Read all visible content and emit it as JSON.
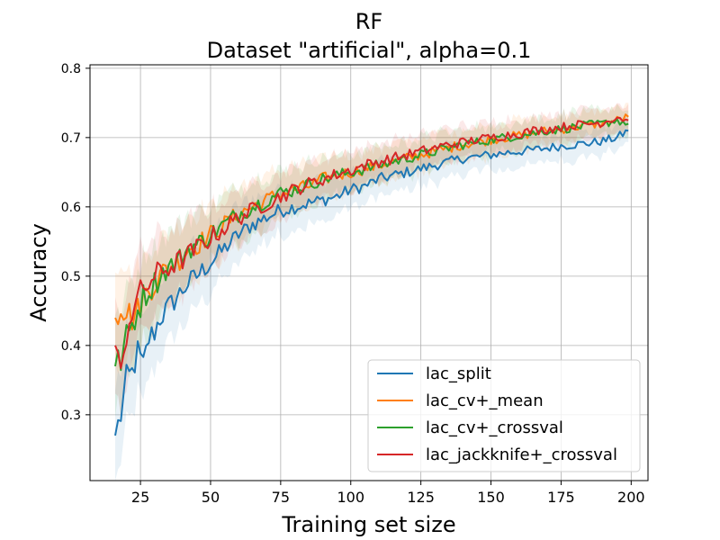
{
  "chart_data": {
    "type": "line",
    "title": "RF",
    "subtitle": "Dataset \"artificial\", alpha=0.1",
    "xlabel": "Training set size",
    "ylabel": "Accuracy",
    "xlim": [
      7,
      206
    ],
    "ylim": [
      0.205,
      0.805
    ],
    "x_ticks": [
      25,
      50,
      75,
      100,
      125,
      150,
      175,
      200
    ],
    "y_ticks": [
      0.3,
      0.4,
      0.5,
      0.6,
      0.7,
      0.8
    ],
    "x_tick_labels": [
      "25",
      "50",
      "75",
      "100",
      "125",
      "150",
      "175",
      "200"
    ],
    "y_tick_labels": [
      "0.3",
      "0.4",
      "0.5",
      "0.6",
      "0.7",
      "0.8"
    ],
    "grid": true,
    "legend_position": "lower-right",
    "series": [
      {
        "name": "lac_split",
        "color": "#1f77b4",
        "points": [
          [
            16,
            0.27
          ],
          [
            18,
            0.3
          ],
          [
            20,
            0.35
          ],
          [
            22,
            0.36
          ],
          [
            24,
            0.39
          ],
          [
            26,
            0.37
          ],
          [
            28,
            0.41
          ],
          [
            30,
            0.42
          ],
          [
            32,
            0.44
          ],
          [
            34,
            0.45
          ],
          [
            36,
            0.46
          ],
          [
            38,
            0.47
          ],
          [
            40,
            0.48
          ],
          [
            42,
            0.49
          ],
          [
            45,
            0.5
          ],
          [
            50,
            0.52
          ],
          [
            55,
            0.54
          ],
          [
            60,
            0.56
          ],
          [
            65,
            0.575
          ],
          [
            70,
            0.585
          ],
          [
            75,
            0.595
          ],
          [
            80,
            0.6
          ],
          [
            85,
            0.605
          ],
          [
            90,
            0.61
          ],
          [
            95,
            0.615
          ],
          [
            100,
            0.625
          ],
          [
            105,
            0.63
          ],
          [
            110,
            0.64
          ],
          [
            115,
            0.645
          ],
          [
            120,
            0.65
          ],
          [
            125,
            0.655
          ],
          [
            130,
            0.66
          ],
          [
            135,
            0.665
          ],
          [
            140,
            0.67
          ],
          [
            145,
            0.672
          ],
          [
            150,
            0.675
          ],
          [
            155,
            0.678
          ],
          [
            160,
            0.68
          ],
          [
            165,
            0.682
          ],
          [
            170,
            0.685
          ],
          [
            175,
            0.688
          ],
          [
            180,
            0.69
          ],
          [
            185,
            0.692
          ],
          [
            190,
            0.695
          ],
          [
            195,
            0.7
          ],
          [
            199,
            0.71
          ]
        ]
      },
      {
        "name": "lac_cv+_mean",
        "color": "#ff7f0e",
        "points": [
          [
            16,
            0.44
          ],
          [
            18,
            0.46
          ],
          [
            20,
            0.45
          ],
          [
            22,
            0.44
          ],
          [
            24,
            0.45
          ],
          [
            26,
            0.47
          ],
          [
            28,
            0.48
          ],
          [
            30,
            0.49
          ],
          [
            32,
            0.5
          ],
          [
            34,
            0.51
          ],
          [
            36,
            0.515
          ],
          [
            38,
            0.52
          ],
          [
            40,
            0.53
          ],
          [
            42,
            0.54
          ],
          [
            45,
            0.545
          ],
          [
            50,
            0.56
          ],
          [
            55,
            0.575
          ],
          [
            60,
            0.59
          ],
          [
            65,
            0.6
          ],
          [
            70,
            0.61
          ],
          [
            75,
            0.62
          ],
          [
            80,
            0.625
          ],
          [
            85,
            0.63
          ],
          [
            90,
            0.64
          ],
          [
            95,
            0.645
          ],
          [
            100,
            0.65
          ],
          [
            105,
            0.655
          ],
          [
            110,
            0.66
          ],
          [
            115,
            0.665
          ],
          [
            120,
            0.67
          ],
          [
            125,
            0.675
          ],
          [
            130,
            0.68
          ],
          [
            135,
            0.685
          ],
          [
            140,
            0.69
          ],
          [
            145,
            0.693
          ],
          [
            150,
            0.697
          ],
          [
            155,
            0.7
          ],
          [
            160,
            0.703
          ],
          [
            165,
            0.706
          ],
          [
            170,
            0.71
          ],
          [
            175,
            0.712
          ],
          [
            180,
            0.715
          ],
          [
            185,
            0.718
          ],
          [
            190,
            0.72
          ],
          [
            195,
            0.725
          ],
          [
            199,
            0.73
          ]
        ]
      },
      {
        "name": "lac_cv+_crossval",
        "color": "#2ca02c",
        "points": [
          [
            16,
            0.37
          ],
          [
            18,
            0.38
          ],
          [
            20,
            0.41
          ],
          [
            22,
            0.43
          ],
          [
            24,
            0.45
          ],
          [
            26,
            0.47
          ],
          [
            28,
            0.48
          ],
          [
            30,
            0.49
          ],
          [
            32,
            0.5
          ],
          [
            34,
            0.51
          ],
          [
            36,
            0.515
          ],
          [
            38,
            0.52
          ],
          [
            40,
            0.53
          ],
          [
            42,
            0.54
          ],
          [
            45,
            0.545
          ],
          [
            50,
            0.56
          ],
          [
            55,
            0.575
          ],
          [
            60,
            0.59
          ],
          [
            65,
            0.6
          ],
          [
            70,
            0.61
          ],
          [
            75,
            0.62
          ],
          [
            80,
            0.625
          ],
          [
            85,
            0.633
          ],
          [
            90,
            0.64
          ],
          [
            95,
            0.645
          ],
          [
            100,
            0.65
          ],
          [
            105,
            0.655
          ],
          [
            110,
            0.66
          ],
          [
            115,
            0.665
          ],
          [
            120,
            0.67
          ],
          [
            125,
            0.675
          ],
          [
            130,
            0.68
          ],
          [
            135,
            0.685
          ],
          [
            140,
            0.69
          ],
          [
            145,
            0.693
          ],
          [
            150,
            0.697
          ],
          [
            155,
            0.7
          ],
          [
            160,
            0.703
          ],
          [
            165,
            0.706
          ],
          [
            170,
            0.71
          ],
          [
            175,
            0.712
          ],
          [
            180,
            0.715
          ],
          [
            185,
            0.718
          ],
          [
            190,
            0.72
          ],
          [
            195,
            0.725
          ],
          [
            199,
            0.72
          ]
        ]
      },
      {
        "name": "lac_jackknife+_crossval",
        "color": "#d62728",
        "points": [
          [
            16,
            0.4
          ],
          [
            18,
            0.35
          ],
          [
            20,
            0.42
          ],
          [
            22,
            0.45
          ],
          [
            24,
            0.47
          ],
          [
            26,
            0.48
          ],
          [
            28,
            0.49
          ],
          [
            30,
            0.5
          ],
          [
            32,
            0.505
          ],
          [
            34,
            0.51
          ],
          [
            36,
            0.515
          ],
          [
            38,
            0.52
          ],
          [
            40,
            0.525
          ],
          [
            42,
            0.53
          ],
          [
            45,
            0.54
          ],
          [
            50,
            0.555
          ],
          [
            55,
            0.57
          ],
          [
            60,
            0.585
          ],
          [
            65,
            0.595
          ],
          [
            70,
            0.605
          ],
          [
            75,
            0.615
          ],
          [
            80,
            0.625
          ],
          [
            85,
            0.633
          ],
          [
            90,
            0.64
          ],
          [
            95,
            0.647
          ],
          [
            100,
            0.653
          ],
          [
            105,
            0.66
          ],
          [
            110,
            0.665
          ],
          [
            115,
            0.67
          ],
          [
            120,
            0.675
          ],
          [
            125,
            0.68
          ],
          [
            130,
            0.685
          ],
          [
            135,
            0.69
          ],
          [
            140,
            0.693
          ],
          [
            145,
            0.697
          ],
          [
            150,
            0.7
          ],
          [
            155,
            0.703
          ],
          [
            160,
            0.706
          ],
          [
            165,
            0.71
          ],
          [
            170,
            0.712
          ],
          [
            175,
            0.715
          ],
          [
            180,
            0.718
          ],
          [
            185,
            0.72
          ],
          [
            190,
            0.722
          ],
          [
            195,
            0.73
          ],
          [
            199,
            0.725
          ]
        ]
      }
    ]
  }
}
